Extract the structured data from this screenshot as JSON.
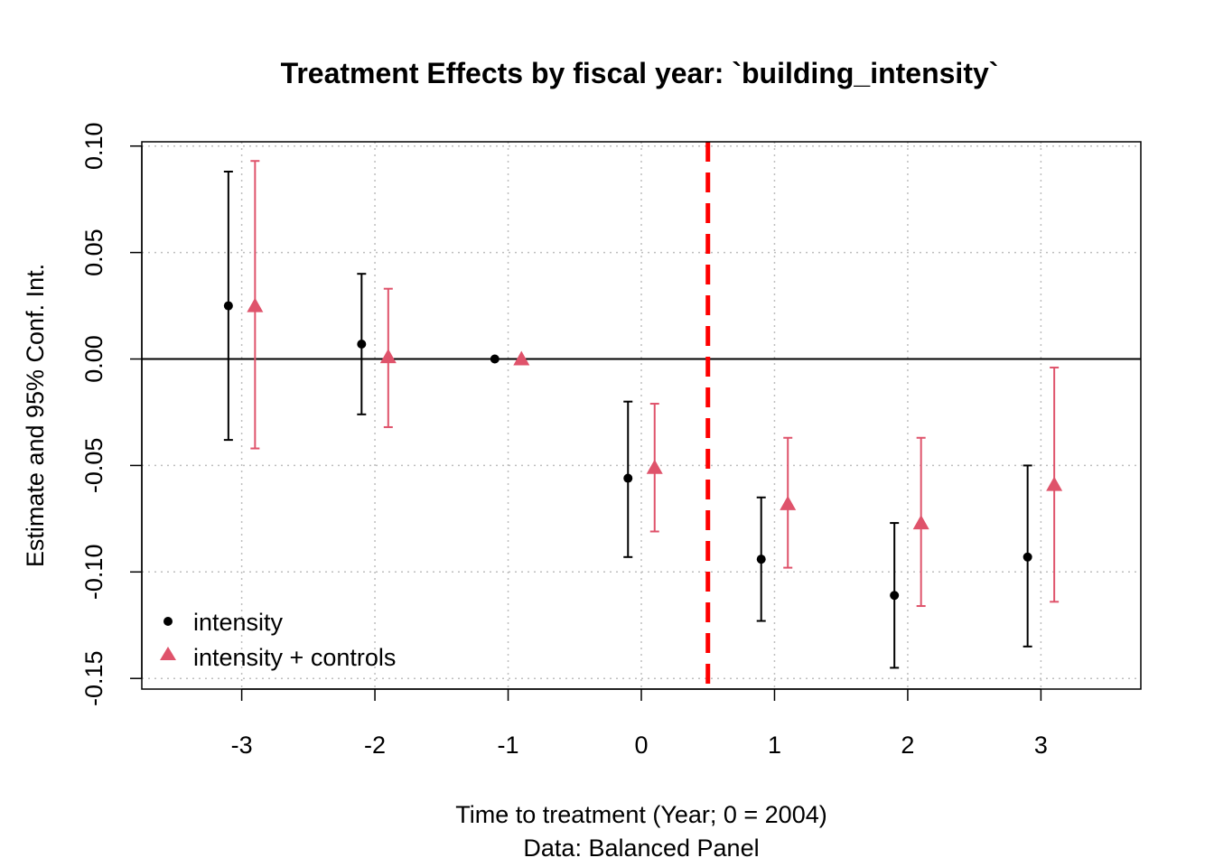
{
  "chart_data": {
    "type": "scatter",
    "title": "Treatment Effects by fiscal year: `building_intensity`",
    "xlabel": "Time to treatment (Year; 0 = 2004)",
    "xlabel_sub": "Data: Balanced Panel",
    "ylabel": "Estimate and 95% Conf. Int.",
    "xlim": [
      -3.75,
      3.75
    ],
    "ylim": [
      -0.155,
      0.102
    ],
    "x_ticks": [
      -3,
      -2,
      -1,
      0,
      1,
      2,
      3
    ],
    "x_tick_labels": [
      "-3",
      "-2",
      "-1",
      "0",
      "1",
      "2",
      "3"
    ],
    "y_ticks": [
      -0.15,
      -0.1,
      -0.05,
      0.0,
      0.05,
      0.1
    ],
    "y_tick_labels": [
      "-0.15",
      "-0.10",
      "-0.05",
      "0.00",
      "0.05",
      "0.10"
    ],
    "grid": true,
    "reference_line_y": 0,
    "treatment_line_x": 0.5,
    "legend_position": "bottom-left",
    "series": [
      {
        "name": "intensity",
        "color": "#000000",
        "marker": "circle",
        "x": [
          -3,
          -2,
          -1,
          0,
          1,
          2,
          3
        ],
        "y": [
          0.025,
          0.007,
          0.0,
          -0.056,
          -0.094,
          -0.111,
          -0.093
        ],
        "ci_low": [
          -0.038,
          -0.026,
          0.0,
          -0.093,
          -0.123,
          -0.145,
          -0.135
        ],
        "ci_high": [
          0.088,
          0.04,
          0.0,
          -0.02,
          -0.065,
          -0.077,
          -0.05
        ]
      },
      {
        "name": "intensity + controls",
        "color": "#DF536B",
        "marker": "triangle",
        "x": [
          -3,
          -2,
          -1,
          0,
          1,
          2,
          3
        ],
        "y": [
          0.025,
          0.001,
          0.0,
          -0.051,
          -0.068,
          -0.077,
          -0.059
        ],
        "ci_low": [
          -0.042,
          -0.032,
          0.0,
          -0.081,
          -0.098,
          -0.116,
          -0.114
        ],
        "ci_high": [
          0.093,
          0.033,
          0.0,
          -0.021,
          -0.037,
          -0.037,
          -0.004
        ]
      }
    ],
    "colors": {
      "treatment_line": "#FF0000",
      "grid": "#BEBEBE"
    }
  }
}
